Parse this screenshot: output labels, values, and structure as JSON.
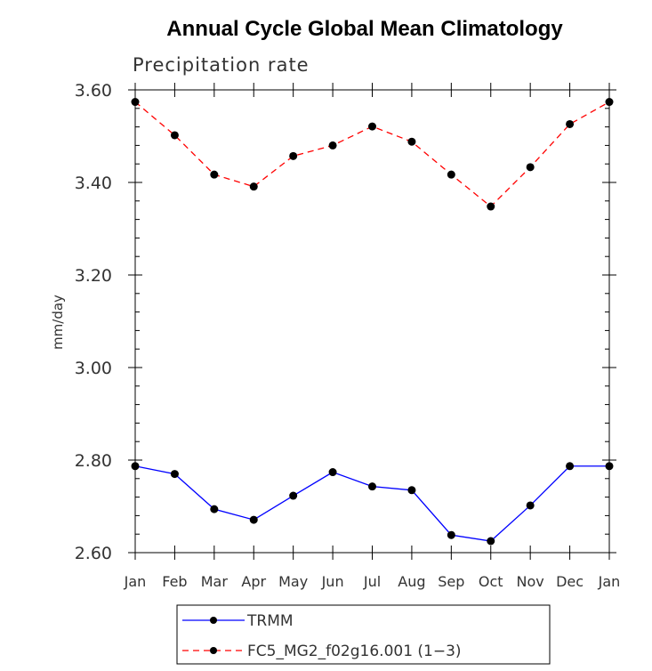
{
  "chart_data": {
    "type": "line",
    "title": "Annual Cycle Global Mean Climatology",
    "subtitle": "Precipitation rate",
    "xlabel": "",
    "ylabel": "mm/day",
    "categories": [
      "Jan",
      "Feb",
      "Mar",
      "Apr",
      "May",
      "Jun",
      "Jul",
      "Aug",
      "Sep",
      "Oct",
      "Nov",
      "Dec",
      "Jan"
    ],
    "ylim": [
      2.6,
      3.6
    ],
    "yticks": [
      "2.60",
      "2.80",
      "3.00",
      "3.20",
      "3.40",
      "3.60"
    ],
    "series": [
      {
        "name": "TRMM",
        "color": "#0000ff",
        "style": "solid",
        "values": [
          2.787,
          2.77,
          2.694,
          2.671,
          2.723,
          2.774,
          2.743,
          2.735,
          2.638,
          2.625,
          2.702,
          2.787,
          2.787
        ]
      },
      {
        "name": "FC5_MG2_f02g16.001 (1−3)",
        "color": "#ff0000",
        "style": "dashed",
        "values": [
          3.574,
          3.502,
          3.417,
          3.391,
          3.457,
          3.48,
          3.521,
          3.488,
          3.417,
          3.348,
          3.433,
          3.526,
          3.574
        ]
      }
    ],
    "legend": "bottom"
  }
}
